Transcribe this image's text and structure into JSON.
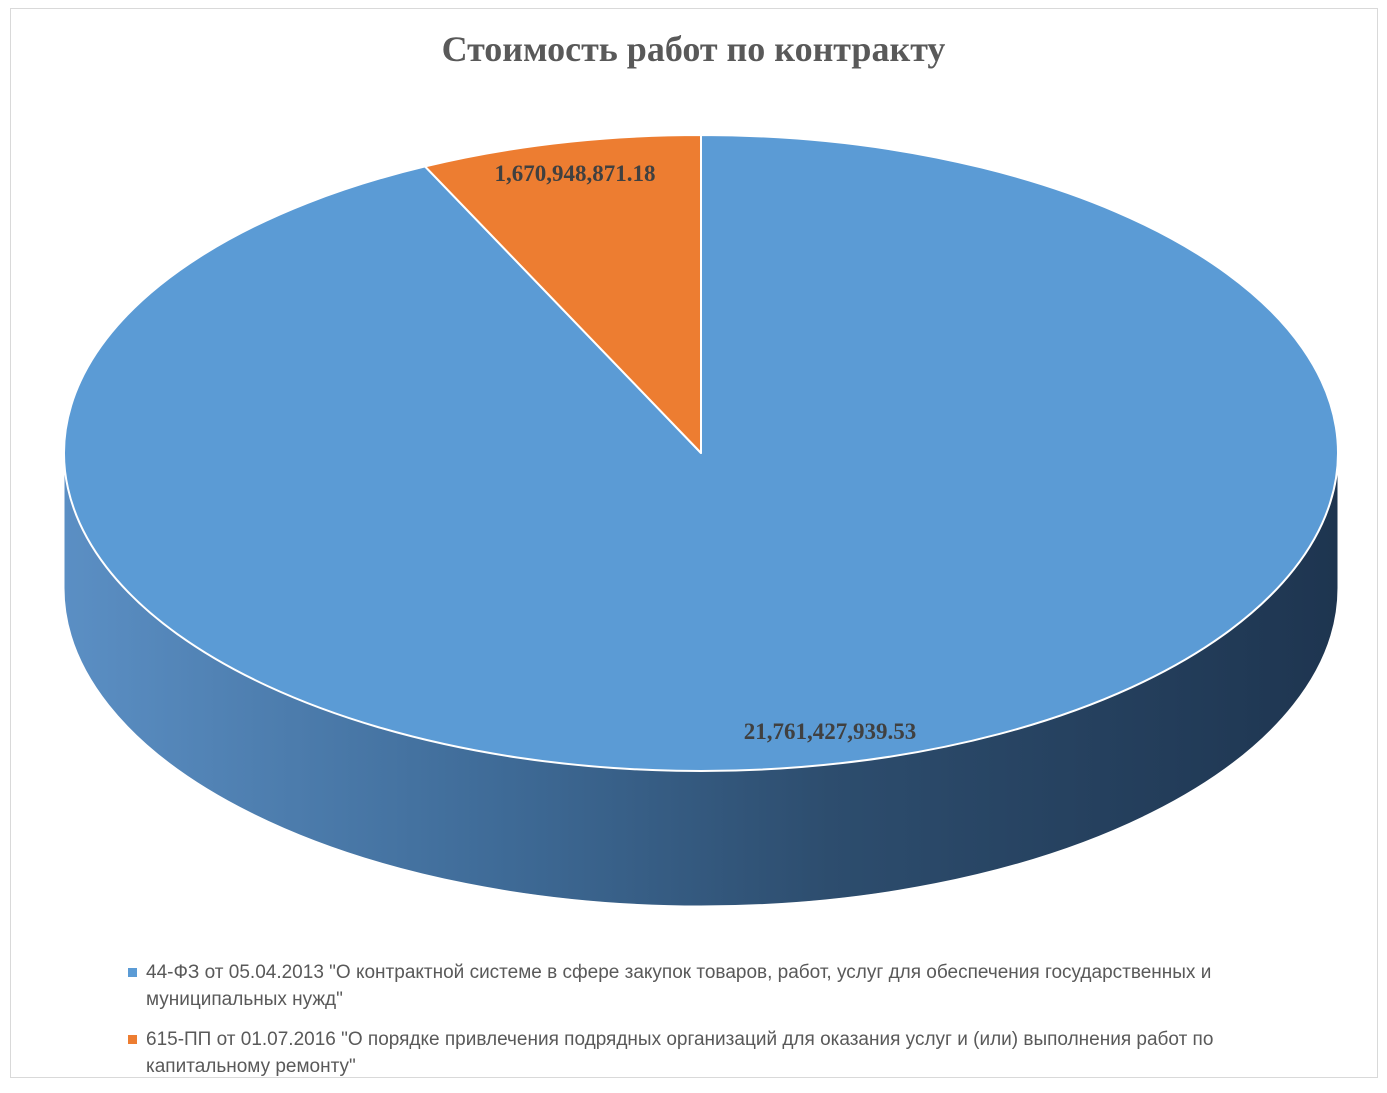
{
  "chart_data": {
    "type": "pie",
    "style": "3d",
    "title": "Стоимость работ по контракту",
    "categories": [
      "44-ФЗ  от 05.04.2013 \"О контрактной системе в сфере закупок товаров, работ, услуг для обеспечения государственных и муниципальных нужд\"",
      "615-ПП от 01.07.2016 \"О порядке привлечения подрядных организаций для оказания услуг и (или) выполнения работ по капитальному ремонту\""
    ],
    "values": [
      21761427939.53,
      1670948871.18
    ],
    "data_labels": [
      "21,761,427,939.53",
      "1,670,948,871.18"
    ],
    "colors": [
      "#5B9BD5",
      "#ED7D31"
    ],
    "legend_position": "bottom"
  }
}
